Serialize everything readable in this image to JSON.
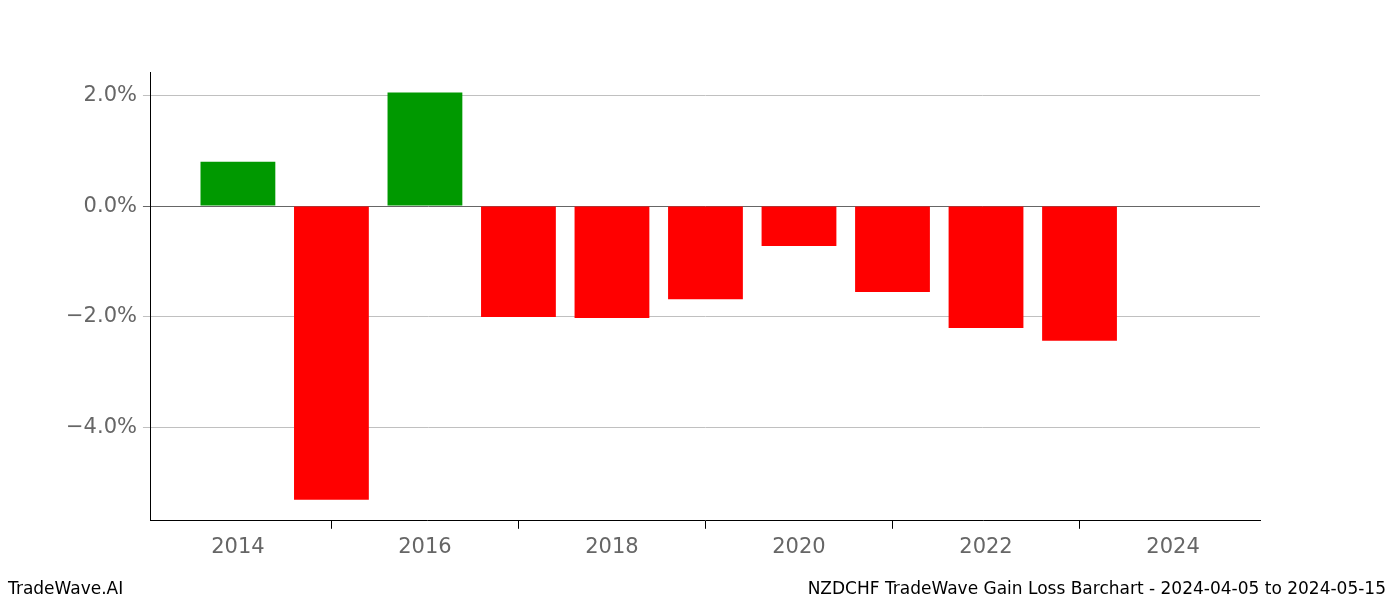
{
  "chart_data": {
    "type": "bar",
    "title": "NZDCHF TradeWave Gain Loss Barchart - 2024-04-05 to 2024-05-15",
    "annotations": [
      "TradeWave.AI"
    ],
    "x": [
      2014,
      2015,
      2016,
      2017,
      2018,
      2019,
      2020,
      2021,
      2022,
      2023
    ],
    "values": [
      0.8,
      -5.3,
      2.05,
      -2.0,
      -2.02,
      -1.68,
      -0.72,
      -1.55,
      -2.2,
      -2.43
    ],
    "colors": [
      "#009900",
      "#ff0000",
      "#009900",
      "#ff0000",
      "#ff0000",
      "#ff0000",
      "#ff0000",
      "#ff0000",
      "#ff0000",
      "#ff0000"
    ],
    "xlim": [
      2013.07,
      2024.93
    ],
    "xticks": [
      2014,
      2016,
      2018,
      2020,
      2022,
      2024
    ],
    "ylim": [
      -5.68,
      2.42
    ],
    "yticks": [
      {
        "value": -4,
        "label": "−4.0%"
      },
      {
        "value": -2,
        "label": "−2.0%"
      },
      {
        "value": 0,
        "label": "0.0%"
      },
      {
        "value": 2,
        "label": "2.0%"
      }
    ],
    "grid": true
  }
}
